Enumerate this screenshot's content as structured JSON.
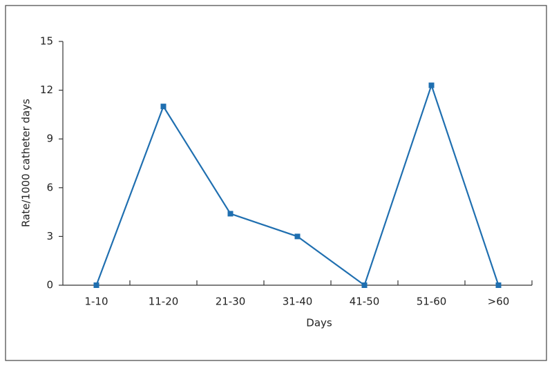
{
  "chart_data": {
    "type": "line",
    "xlabel": "Days",
    "ylabel": "Rate/1000 catheter days",
    "categories": [
      "1-10",
      "11-20",
      "21-30",
      "31-40",
      "41-50",
      "51-60",
      ">60"
    ],
    "values": [
      0,
      11,
      4.4,
      3,
      0,
      12.3,
      0
    ],
    "color": "#1f6fb0",
    "ylim": [
      0,
      15
    ],
    "yticks": [
      0,
      3,
      6,
      9,
      12,
      15
    ],
    "grid": false
  }
}
